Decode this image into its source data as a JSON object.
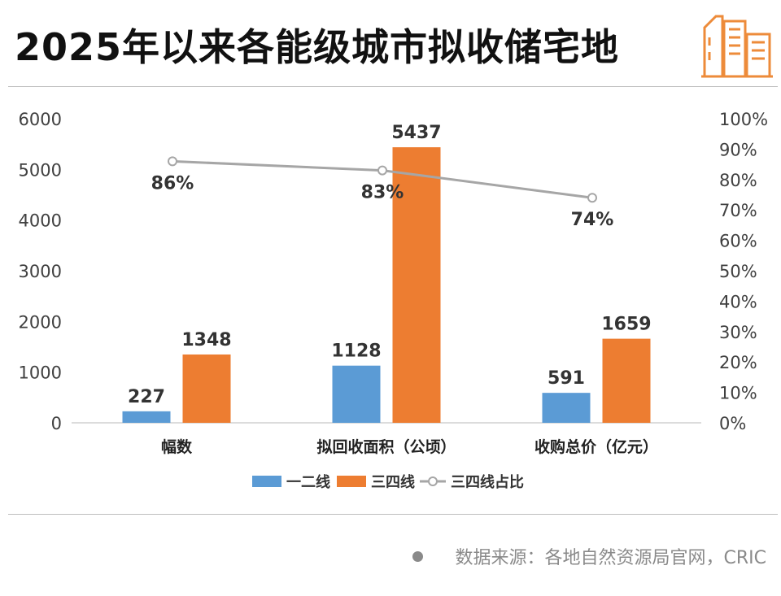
{
  "title": "2025年以来各能级城市拟收储宅地",
  "source": "数据来源：各地自然资源局官网，CRIC",
  "logo_icon": "buildings-icon",
  "colors": {
    "tier12": "#5b9bd5",
    "tier34": "#ed7d31",
    "ratio": "#a6a6a6",
    "axis_text": "#404040"
  },
  "chart_data": {
    "type": "bar",
    "categories": [
      "幅数",
      "拟回收面积（公顷）",
      "收购总价（亿元）"
    ],
    "series": [
      {
        "name": "一二线",
        "values": [
          227,
          1128,
          591
        ]
      },
      {
        "name": "三四线",
        "values": [
          1348,
          5437,
          1659
        ]
      }
    ],
    "line_series": {
      "name": "三四线占比",
      "values": [
        0.86,
        0.83,
        0.74
      ],
      "labels": [
        "86%",
        "83%",
        "74%"
      ]
    },
    "ylim": [
      0,
      6000
    ],
    "yticks": [
      "0",
      "1000",
      "2000",
      "3000",
      "4000",
      "5000",
      "6000"
    ],
    "y2lim": [
      0,
      1
    ],
    "y2ticks": [
      "0%",
      "10%",
      "20%",
      "30%",
      "40%",
      "50%",
      "60%",
      "70%",
      "80%",
      "90%",
      "100%"
    ],
    "legend": [
      "一二线",
      "三四线",
      "三四线占比"
    ],
    "legend_position": "bottom",
    "grid": false
  }
}
